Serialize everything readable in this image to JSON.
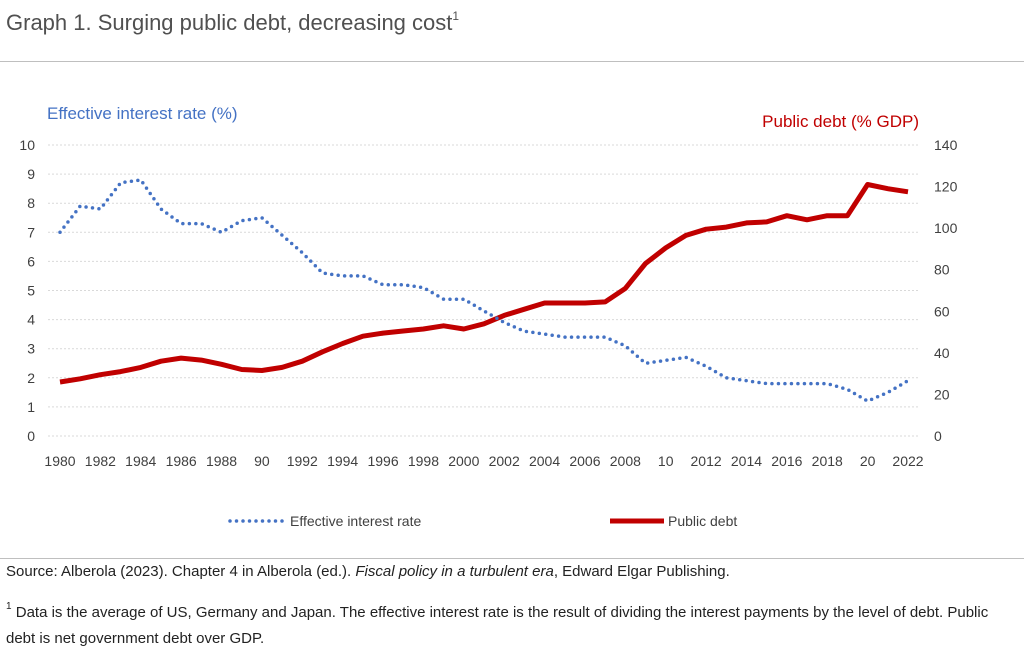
{
  "title": {
    "text": "Graph 1. Surging public debt, decreasing cost",
    "sup": "1"
  },
  "source": {
    "prefix": "Source: Alberola (2023). Chapter 4 in Alberola (ed.). ",
    "italic": "Fiscal policy in a turbulent era",
    "suffix": ", Edward Elgar Publishing."
  },
  "footnote": {
    "sup": "1",
    "text": " Data is the average of US, Germany and Japan. The effective interest rate is the result of dividing the interest payments by the level of debt. Public debt is net government debt over GDP."
  },
  "colors": {
    "interest": "#4472c4",
    "debt": "#c00000"
  },
  "chart_data": {
    "type": "line",
    "left_axis_label": "Effective interest rate (%)",
    "right_axis_label": "Public debt  (% GDP)",
    "left_ylim": [
      0,
      10
    ],
    "left_ticks": [
      "0",
      "1",
      "2",
      "3",
      "4",
      "5",
      "6",
      "7",
      "8",
      "9",
      "10"
    ],
    "right_ylim": [
      0,
      140
    ],
    "right_ticks": [
      "0",
      "20",
      "40",
      "60",
      "80",
      "100",
      "120",
      "140"
    ],
    "x_tick_labels": [
      "1980",
      "1982",
      "1984",
      "1986",
      "1988",
      "90",
      "1992",
      "1994",
      "1996",
      "1998",
      "2000",
      "2002",
      "2004",
      "2006",
      "2008",
      "10",
      "2012",
      "2014",
      "2016",
      "2018",
      "20",
      "2022"
    ],
    "x": [
      1980,
      1981,
      1982,
      1983,
      1984,
      1985,
      1986,
      1987,
      1988,
      1989,
      1990,
      1991,
      1992,
      1993,
      1994,
      1995,
      1996,
      1997,
      1998,
      1999,
      2000,
      2001,
      2002,
      2003,
      2004,
      2005,
      2006,
      2007,
      2008,
      2009,
      2010,
      2011,
      2012,
      2013,
      2014,
      2015,
      2016,
      2017,
      2018,
      2019,
      2020,
      2021,
      2022
    ],
    "grid": "horizontal",
    "legend_position": "bottom",
    "series": [
      {
        "name": "Effective interest rate",
        "axis": "left",
        "style": "dotted",
        "values": [
          7.0,
          7.9,
          7.8,
          8.7,
          8.8,
          7.8,
          7.3,
          7.3,
          7.0,
          7.4,
          7.5,
          6.9,
          6.3,
          5.6,
          5.5,
          5.5,
          5.2,
          5.2,
          5.1,
          4.7,
          4.7,
          4.3,
          3.9,
          3.6,
          3.5,
          3.4,
          3.4,
          3.4,
          3.1,
          2.5,
          2.6,
          2.7,
          2.4,
          2.0,
          1.9,
          1.8,
          1.8,
          1.8,
          1.8,
          1.6,
          1.2,
          1.5,
          1.9
        ]
      },
      {
        "name": "Public debt",
        "axis": "right",
        "style": "solid",
        "values": [
          26,
          27.5,
          29.5,
          31,
          33,
          36,
          37.5,
          36.5,
          34.5,
          32,
          31.5,
          33,
          36,
          40.5,
          44.5,
          48,
          49.5,
          50.5,
          51.5,
          53,
          51.5,
          54,
          58,
          61,
          64,
          64,
          64,
          64.5,
          71,
          83,
          90.5,
          96.5,
          99.5,
          100.5,
          102.5,
          103,
          106,
          104,
          106,
          106,
          121,
          119,
          117.5
        ]
      }
    ]
  }
}
